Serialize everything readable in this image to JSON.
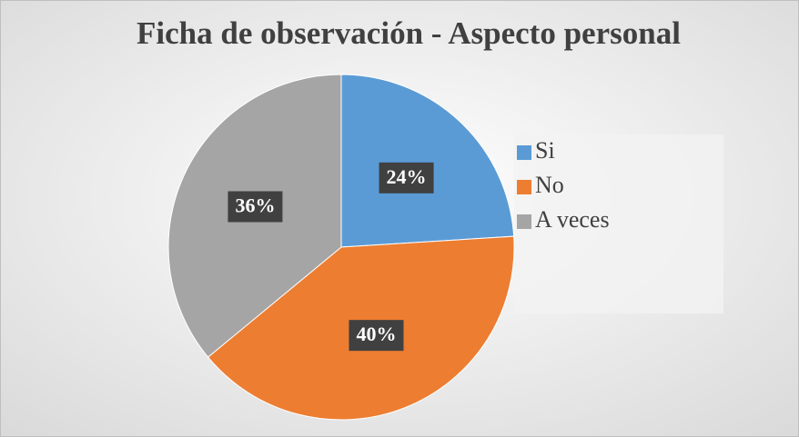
{
  "chart_data": {
    "type": "pie",
    "title": "Ficha de observación - Aspecto personal",
    "categories": [
      "Si",
      "No",
      "A veces"
    ],
    "values": [
      24,
      40,
      36
    ],
    "value_labels": [
      "24%",
      "40%",
      "36%"
    ],
    "colors": [
      "#5b9bd5",
      "#ed7d31",
      "#a5a5a5"
    ],
    "legend": "right"
  }
}
